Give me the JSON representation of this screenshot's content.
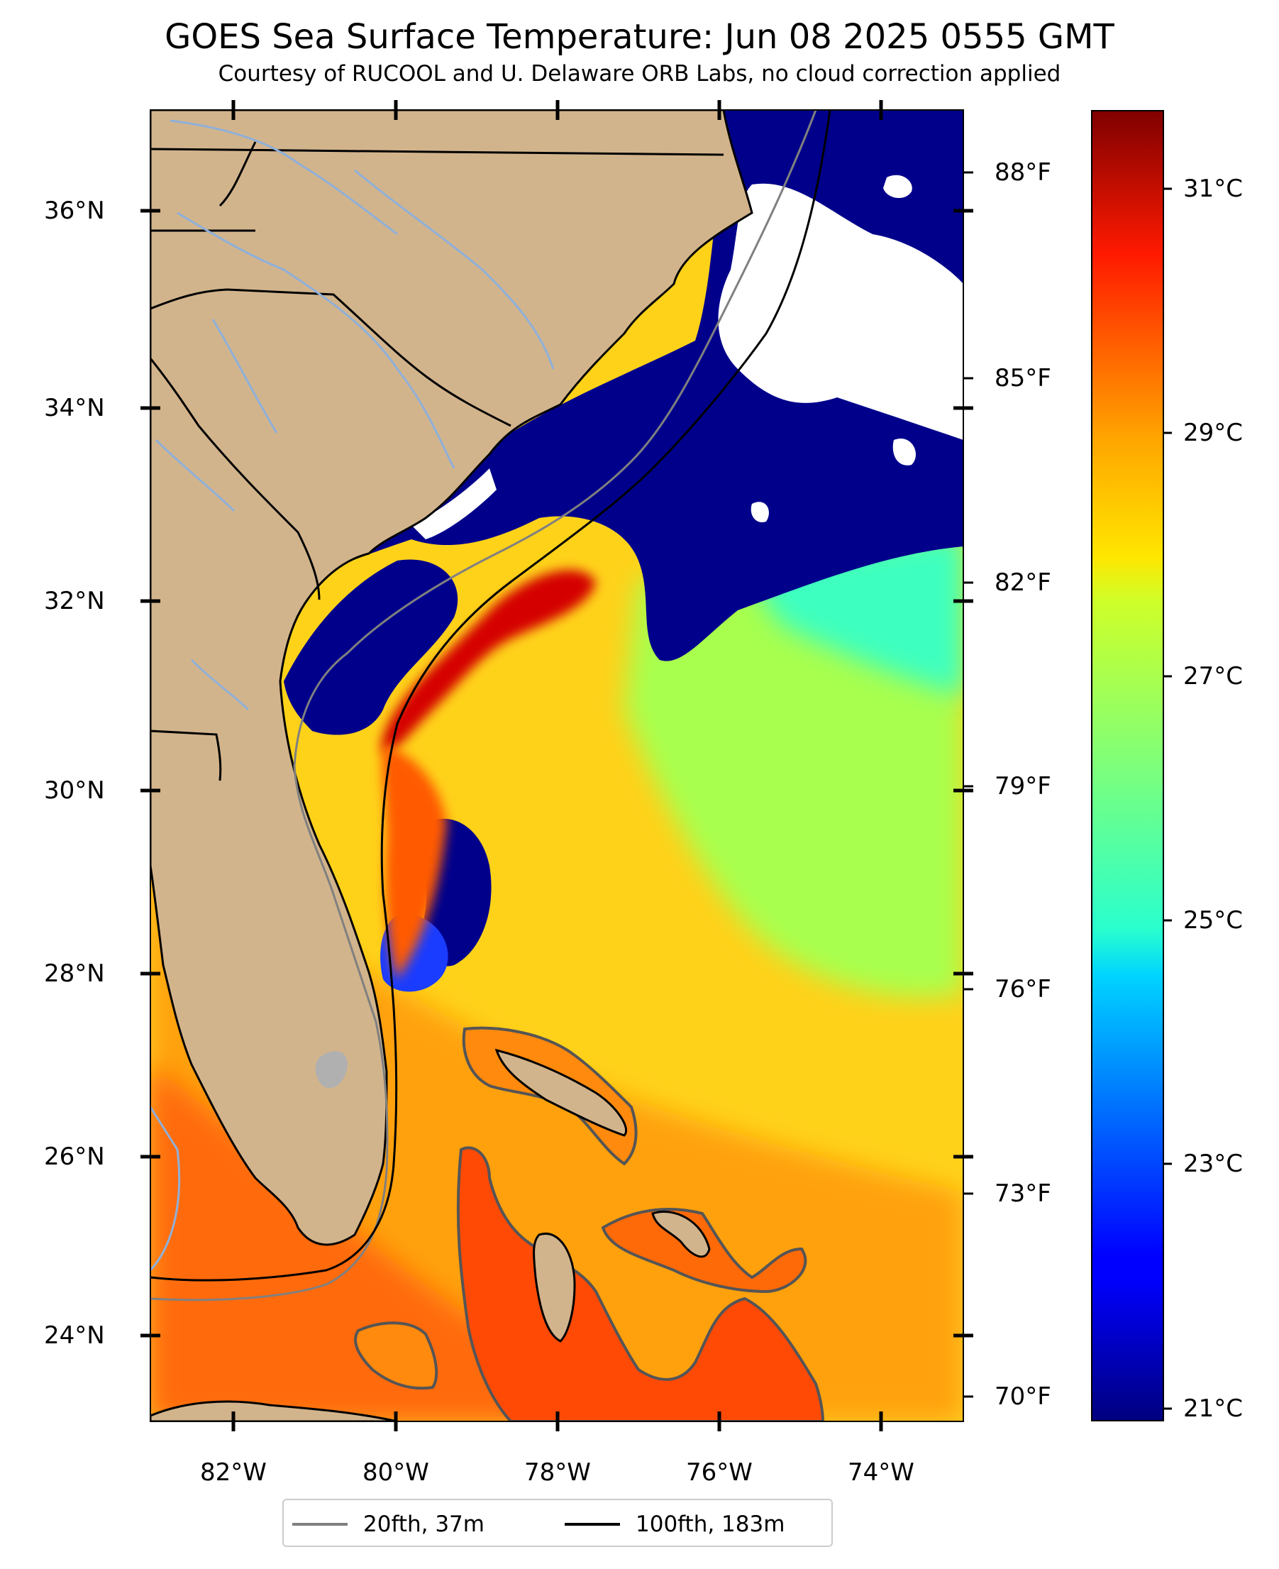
{
  "title": "GOES Sea Surface Temperature: Jun 08 2025 0555 GMT",
  "subtitle": "Courtesy of RUCOOL and U. Delaware ORB Labs, no cloud correction applied",
  "map": {
    "lon_range": [
      "83°W",
      "73°W"
    ],
    "lat_range": [
      "23.1°N",
      "37.1°N"
    ],
    "lat_labels": [
      "36°N",
      "34°N",
      "32°N",
      "30°N",
      "28°N",
      "26°N",
      "24°N"
    ],
    "lon_labels": [
      "82°W",
      "80°W",
      "78°W",
      "76°W",
      "74°W"
    ],
    "f_labels": [
      "88°F",
      "85°F",
      "82°F",
      "79°F",
      "76°F",
      "73°F",
      "70°F"
    ],
    "land_color": "#d2b48c",
    "cloud_color": "#ffffff",
    "cold_water_color": "#00008b"
  },
  "colorbar": {
    "colormap": "jet",
    "range_c": [
      20.8,
      31.8
    ],
    "labels": [
      "31°C",
      "29°C",
      "27°C",
      "25°C",
      "23°C",
      "21°C"
    ]
  },
  "legend": {
    "items": [
      {
        "label": "20fth, 37m",
        "color": "#808080"
      },
      {
        "label": "100fth, 183m",
        "color": "#000000"
      }
    ]
  }
}
